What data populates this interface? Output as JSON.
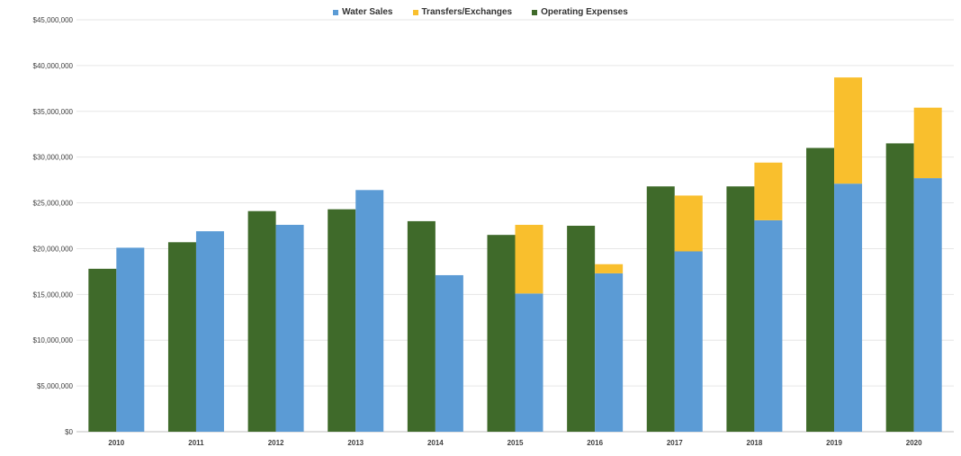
{
  "chart_data": {
    "type": "bar",
    "categories": [
      "2010",
      "2011",
      "2012",
      "2013",
      "2014",
      "2015",
      "2016",
      "2017",
      "2018",
      "2019",
      "2020"
    ],
    "series": [
      {
        "name": "Operating Expenses",
        "color": "#3f6a2a",
        "stack": "expenses",
        "values": [
          17800000,
          20700000,
          24100000,
          24300000,
          23000000,
          21500000,
          22500000,
          26800000,
          26800000,
          31000000,
          31500000
        ]
      },
      {
        "name": "Water Sales",
        "color": "#5b9bd5",
        "stack": "revenue",
        "values": [
          20100000,
          21900000,
          22600000,
          26400000,
          17100000,
          15100000,
          17300000,
          19700000,
          23100000,
          27100000,
          27700000
        ]
      },
      {
        "name": "Transfers/Exchanges",
        "color": "#f9bf2d",
        "stack": "revenue",
        "values": [
          0,
          0,
          0,
          0,
          0,
          7500000,
          1000000,
          6100000,
          6300000,
          11600000,
          7700000
        ]
      }
    ],
    "legend_order": [
      "Water Sales",
      "Transfers/Exchanges",
      "Operating Expenses"
    ],
    "legend_position": "top",
    "yticks": [
      "$0",
      "$5,000,000",
      "$10,000,000",
      "$15,000,000",
      "$20,000,000",
      "$25,000,000",
      "$30,000,000",
      "$35,000,000",
      "$40,000,000",
      "$45,000,000"
    ],
    "ylim": [
      0,
      45000000
    ],
    "ystep": 5000000,
    "grid": true,
    "title": "",
    "xlabel": "",
    "ylabel": ""
  }
}
